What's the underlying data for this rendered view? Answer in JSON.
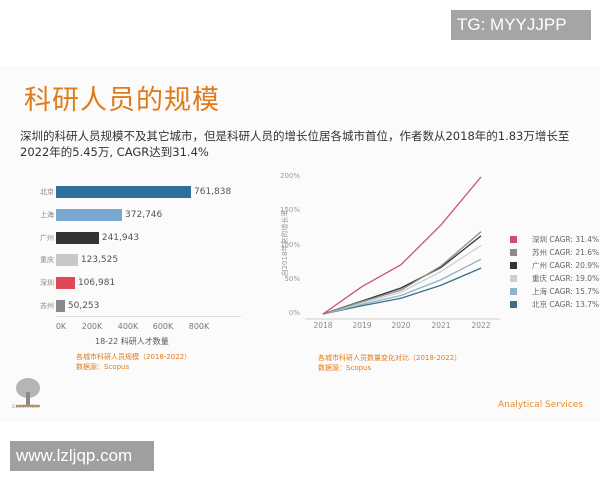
{
  "watermarks": {
    "top": "TG: MYYJJPP",
    "bottom": "www.lzljqp.com"
  },
  "slide": {
    "title": "科研人员的规模",
    "subtitle": "深圳的科研人员规模不及其它城市，但是科研人员的增长位居各城市首位，作者数从2018年的1.83万增长至2022年的5.45万, CAGR达到31.4%",
    "footer_brand": "Analytical Services",
    "logo_text": "ELSEVIER"
  },
  "colors": {
    "accent": "#e07b1a"
  },
  "chart_data": [
    {
      "type": "bar",
      "orientation": "horizontal",
      "categories": [
        "北京",
        "上海",
        "广州",
        "重庆",
        "深圳",
        "苏州"
      ],
      "values": [
        761838,
        372746,
        241943,
        123525,
        106981,
        50253
      ],
      "value_labels": [
        "761,838",
        "372,746",
        "241,943",
        "123,525",
        "106,981",
        "50,253"
      ],
      "colors": [
        "#2e6f9e",
        "#7aa8cf",
        "#333333",
        "#c8c8c8",
        "#e0485a",
        "#8a8a8a"
      ],
      "xlabel": "18-22 科研人才数量",
      "xticks": [
        "0K",
        "200K",
        "400K",
        "600K",
        "800K"
      ],
      "xlim": [
        0,
        900000
      ],
      "caption": "各城市科研人员规模（2018-2022）",
      "source": "数据源：Scopus"
    },
    {
      "type": "line",
      "x": [
        "2018",
        "2019",
        "2020",
        "2021",
        "2022"
      ],
      "ylabel": "自2018年来的增长率",
      "yticks": [
        "0%",
        "50%",
        "100%",
        "150%",
        "200%"
      ],
      "ylim": [
        0,
        200
      ],
      "series": [
        {
          "name": "深圳",
          "legend": "深圳 CAGR: 31.4%",
          "color": "#c9546a",
          "values": [
            0,
            40,
            72,
            130,
            200
          ]
        },
        {
          "name": "苏州",
          "legend": "苏州 CAGR: 21.6%",
          "color": "#8c8c8c",
          "values": [
            0,
            18,
            35,
            70,
            120
          ]
        },
        {
          "name": "广州",
          "legend": "广州 CAGR: 20.9%",
          "color": "#333333",
          "values": [
            0,
            19,
            38,
            68,
            114
          ]
        },
        {
          "name": "重庆",
          "legend": "重庆 CAGR: 19.0%",
          "color": "#cfcfcf",
          "values": [
            0,
            16,
            32,
            62,
            100
          ]
        },
        {
          "name": "上海",
          "legend": "上海 CAGR: 15.7%",
          "color": "#8fb3c8",
          "values": [
            0,
            14,
            27,
            50,
            80
          ]
        },
        {
          "name": "北京",
          "legend": "北京 CAGR: 13.7%",
          "color": "#3b6e8a",
          "values": [
            0,
            12,
            23,
            42,
            67
          ]
        }
      ],
      "caption": "各城市科研人员数量变化对比（2018-2022）",
      "source": "数据源：Scopus"
    }
  ]
}
